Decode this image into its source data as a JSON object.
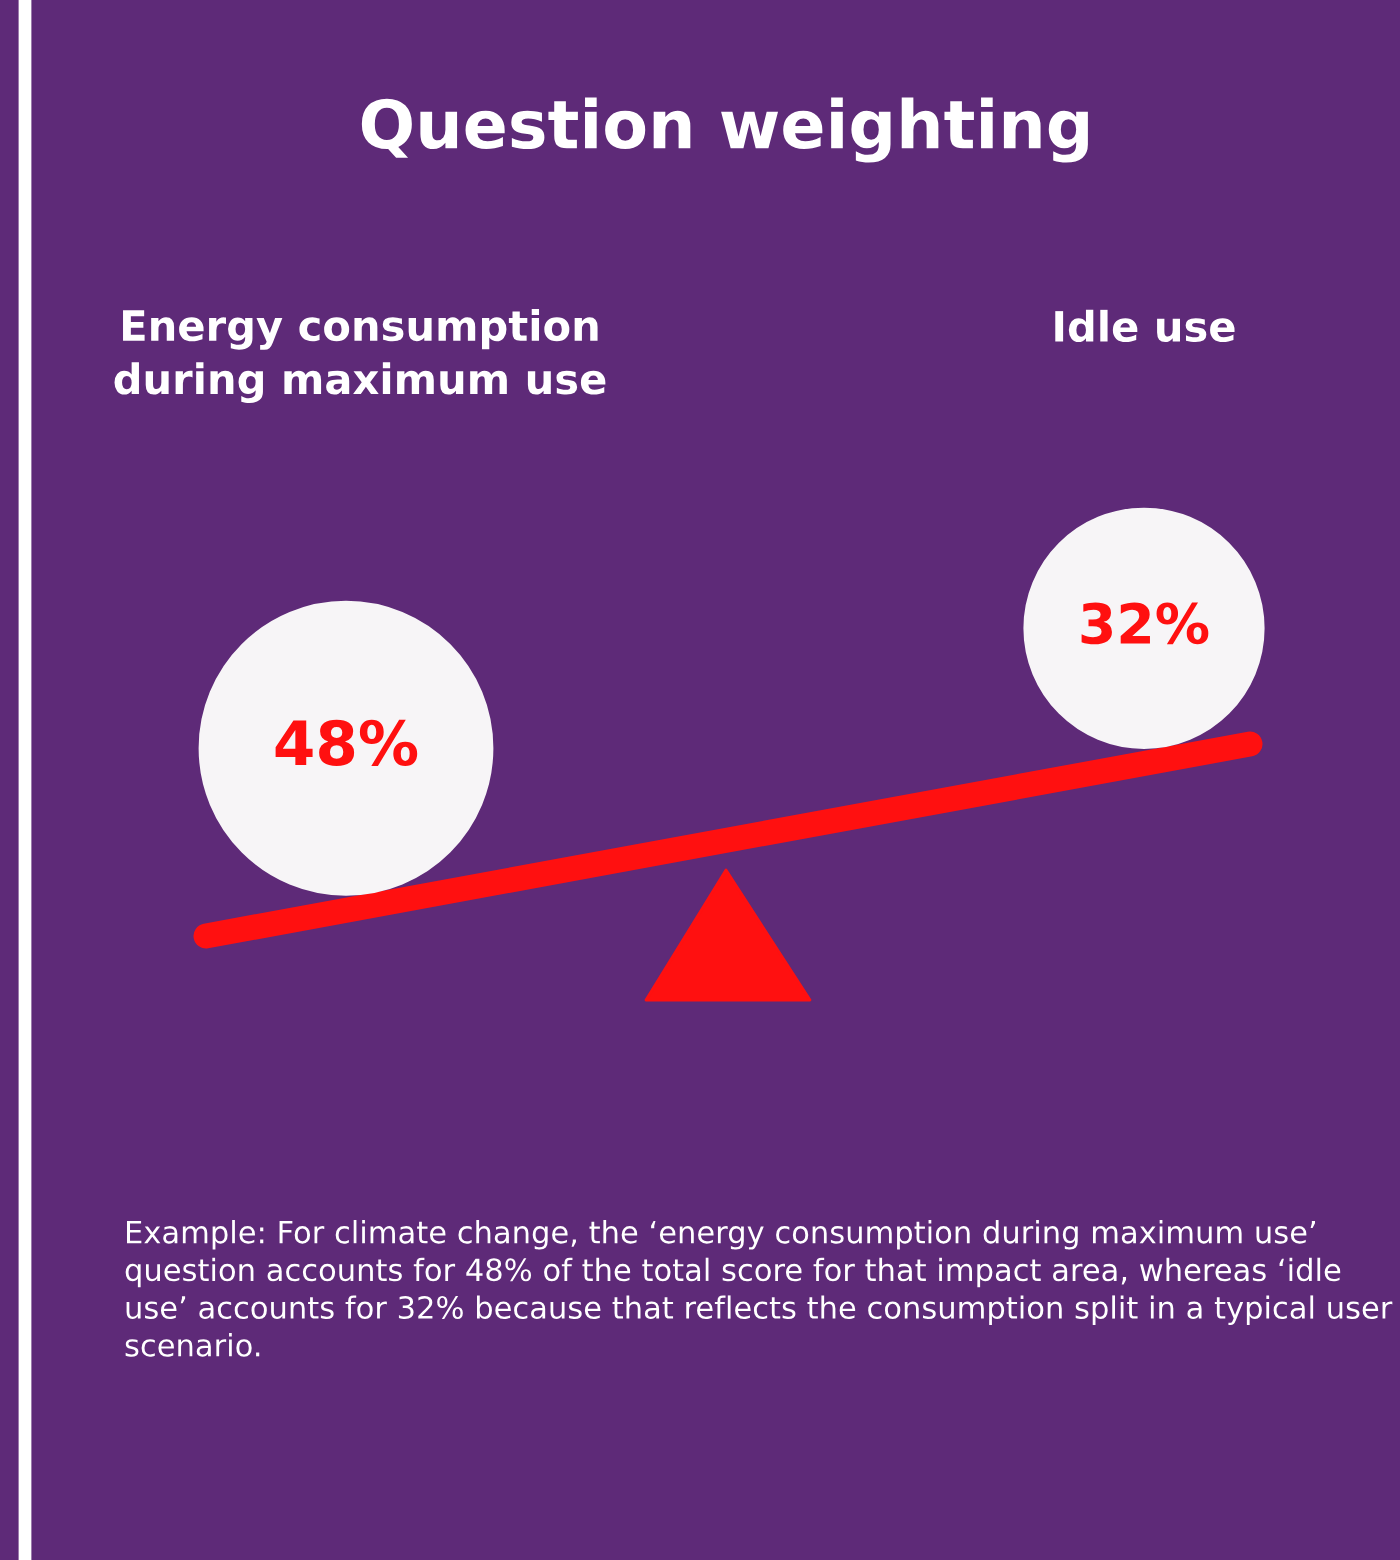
{
  "chart_data": {
    "type": "other",
    "title": "Question weighting",
    "categories": [
      "Energy consumption\nduring maximum use",
      "Idle use"
    ],
    "values": [
      48,
      32
    ],
    "value_labels": [
      "48%",
      "32%"
    ],
    "colors": [
      "#f7f5f7",
      "#f7f5f7"
    ],
    "annotations": [
      "Example: For climate change, the ‘energy consumption during maximum use’ question accounts for 48% of the total score for that impact area, whereas ‘idle use’ accounts for 32% because that reflects the consumption split in a typical user scenario."
    ]
  }
}
